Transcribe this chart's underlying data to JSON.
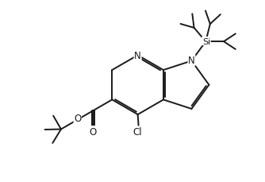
{
  "bg_color": "#ffffff",
  "line_color": "#1a1a1a",
  "line_width": 1.4,
  "font_size": 8.5,
  "xlim": [
    0,
    10
  ],
  "ylim": [
    0,
    7
  ],
  "figsize": [
    3.34,
    2.3
  ],
  "dpi": 100
}
